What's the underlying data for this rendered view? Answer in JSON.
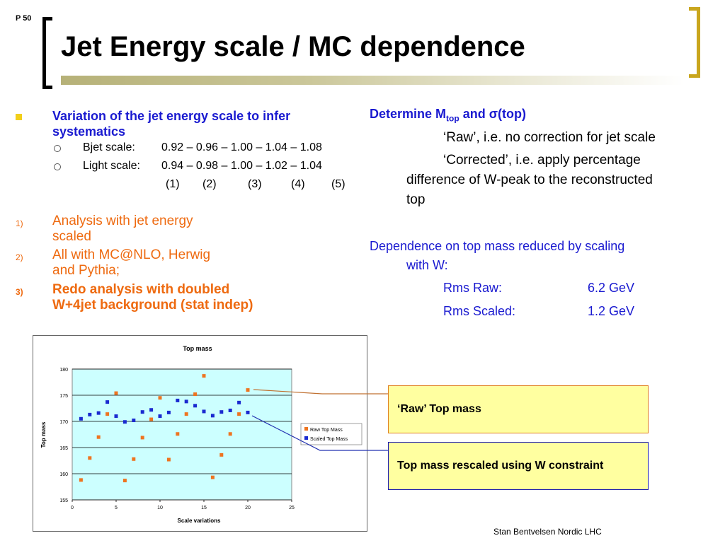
{
  "page_number": "P 50",
  "title": "Jet Energy scale / MC dependence",
  "left": {
    "main_bullet": "Variation of the jet energy scale to infer systematics",
    "sub": [
      {
        "label": "Bjet scale:",
        "values": "0.92 – 0.96 – 1.00 – 1.04 – 1.08"
      },
      {
        "label": "Light scale:",
        "values": "0.94 – 0.98 – 1.00 – 1.02 – 1.04"
      }
    ],
    "indices": [
      "(1)",
      "(2)",
      "(3)",
      "(4)",
      "(5)"
    ],
    "numbered": [
      {
        "num": "1)",
        "line1": "Analysis with jet energy",
        "line2": "scaled"
      },
      {
        "num": "2)",
        "line1": "All with MC@NLO, Herwig",
        "line2": "and Pythia;"
      },
      {
        "num": "3)",
        "line1": "Redo analysis with doubled",
        "line2": "W+4jet background (stat indep)"
      }
    ]
  },
  "right": {
    "determine_prefix": "Determine M",
    "determine_sub": "top",
    "determine_suffix": " and σ(top)",
    "raw_line": "‘Raw’, i.e. no correction for jet scale",
    "corrected_line1": "‘Corrected’, i.e. apply percentage",
    "corrected_line2": "difference of  W-peak to the reconstructed",
    "corrected_line3": "top",
    "dependence_line1": "Dependence on top mass reduced by scaling",
    "dependence_line2": "with W:",
    "rms": [
      {
        "label": "Rms Raw:",
        "value": "6.2 GeV"
      },
      {
        "label": "Rms Scaled:",
        "value": "1.2 GeV"
      }
    ]
  },
  "callouts": {
    "raw": "‘Raw’ Top mass",
    "scaled": "Top mass rescaled using W constraint"
  },
  "footer": "Stan Bentvelsen Nordic LHC",
  "colors": {
    "raw": "#ee7420",
    "scaled": "#1a2ad0",
    "plot_bg": "#ccffff"
  },
  "chart_data": {
    "type": "scatter",
    "title": "Top mass",
    "xlabel": "Scale variations",
    "ylabel": "Top mass",
    "xlim": [
      0,
      25
    ],
    "ylim": [
      155,
      180
    ],
    "xticks": [
      0,
      5,
      10,
      15,
      20,
      25
    ],
    "yticks": [
      155,
      160,
      165,
      170,
      175,
      180
    ],
    "legend_position": "right",
    "series": [
      {
        "name": "Raw Top Mass",
        "x": [
          1,
          2,
          3,
          4,
          5,
          6,
          7,
          8,
          9,
          10,
          11,
          12,
          13,
          14,
          15,
          16,
          17,
          18,
          19,
          20
        ],
        "y": [
          158.8,
          163.0,
          167.0,
          171.4,
          175.4,
          158.7,
          162.8,
          166.9,
          170.4,
          174.5,
          162.7,
          167.6,
          171.4,
          175.2,
          178.7,
          159.3,
          163.6,
          167.6,
          171.4,
          176.0
        ]
      },
      {
        "name": "Scaled Top Mass",
        "x": [
          1,
          2,
          3,
          4,
          5,
          6,
          7,
          8,
          9,
          10,
          11,
          12,
          13,
          14,
          15,
          16,
          17,
          18,
          19,
          20
        ],
        "y": [
          170.5,
          171.3,
          171.6,
          173.7,
          171.0,
          169.9,
          170.2,
          171.8,
          172.2,
          171.0,
          171.7,
          174.0,
          173.8,
          173.0,
          171.9,
          171.1,
          171.8,
          172.1,
          173.6,
          171.7
        ]
      }
    ]
  }
}
